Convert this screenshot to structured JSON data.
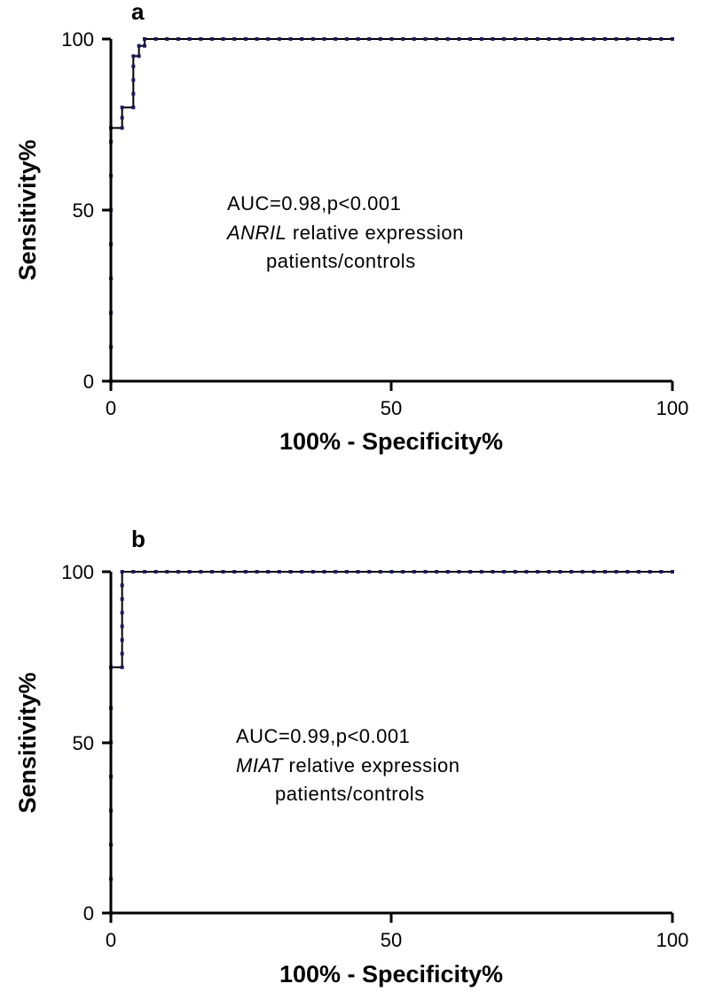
{
  "chart_data": [
    {
      "type": "line",
      "panel_label": "a",
      "xlabel": "100% - Specificity%",
      "ylabel": "Sensitivity%",
      "xlim": [
        0,
        100
      ],
      "ylim": [
        0,
        100
      ],
      "x_ticks": [
        "0",
        "50",
        "100"
      ],
      "y_ticks": [
        "0",
        "50",
        "100"
      ],
      "annotation": {
        "line1": "AUC=0.98,p<0.001",
        "line2_italic": "ANRIL",
        "line2_rest": " relative expression",
        "line3": "patients/controls"
      },
      "series": [
        {
          "step_x": [
            0,
            0,
            2,
            2,
            4,
            4,
            5,
            5,
            6,
            6,
            100
          ],
          "step_y": [
            0,
            74,
            74,
            80,
            80,
            95,
            95,
            98,
            98,
            100,
            100
          ],
          "markers": [
            [
              0,
              0
            ],
            [
              0,
              10
            ],
            [
              0,
              20
            ],
            [
              0,
              30
            ],
            [
              0,
              40
            ],
            [
              0,
              50
            ],
            [
              0,
              60
            ],
            [
              0,
              70
            ],
            [
              0,
              74
            ],
            [
              2,
              74
            ],
            [
              2,
              77
            ],
            [
              2,
              80
            ],
            [
              4,
              80
            ],
            [
              4,
              84
            ],
            [
              4,
              88
            ],
            [
              4,
              92
            ],
            [
              4,
              95
            ],
            [
              5,
              95
            ],
            [
              5,
              98
            ],
            [
              6,
              98
            ],
            [
              6,
              100
            ],
            [
              8,
              100
            ],
            [
              10,
              100
            ],
            [
              12,
              100
            ],
            [
              14,
              100
            ],
            [
              16,
              100
            ],
            [
              18,
              100
            ],
            [
              20,
              100
            ],
            [
              22,
              100
            ],
            [
              24,
              100
            ],
            [
              26,
              100
            ],
            [
              28,
              100
            ],
            [
              30,
              100
            ],
            [
              32,
              100
            ],
            [
              34,
              100
            ],
            [
              36,
              100
            ],
            [
              38,
              100
            ],
            [
              40,
              100
            ],
            [
              42,
              100
            ],
            [
              44,
              100
            ],
            [
              46,
              100
            ],
            [
              48,
              100
            ],
            [
              50,
              100
            ],
            [
              52,
              100
            ],
            [
              54,
              100
            ],
            [
              56,
              100
            ],
            [
              58,
              100
            ],
            [
              60,
              100
            ],
            [
              62,
              100
            ],
            [
              64,
              100
            ],
            [
              66,
              100
            ],
            [
              68,
              100
            ],
            [
              70,
              100
            ],
            [
              72,
              100
            ],
            [
              74,
              100
            ],
            [
              76,
              100
            ],
            [
              78,
              100
            ],
            [
              80,
              100
            ],
            [
              82,
              100
            ],
            [
              84,
              100
            ],
            [
              86,
              100
            ],
            [
              88,
              100
            ],
            [
              90,
              100
            ],
            [
              92,
              100
            ],
            [
              94,
              100
            ],
            [
              96,
              100
            ],
            [
              98,
              100
            ],
            [
              100,
              100
            ]
          ]
        }
      ]
    },
    {
      "type": "line",
      "panel_label": "b",
      "xlabel": "100% - Specificity%",
      "ylabel": "Sensitivity%",
      "xlim": [
        0,
        100
      ],
      "ylim": [
        0,
        100
      ],
      "x_ticks": [
        "0",
        "50",
        "100"
      ],
      "y_ticks": [
        "0",
        "50",
        "100"
      ],
      "annotation": {
        "line1": "AUC=0.99,p<0.001",
        "line2_italic": "MIAT",
        "line2_rest": " relative expression",
        "line3": "patients/controls"
      },
      "series": [
        {
          "step_x": [
            0,
            0,
            2,
            2,
            100
          ],
          "step_y": [
            0,
            72,
            72,
            100,
            100
          ],
          "markers": [
            [
              0,
              0
            ],
            [
              0,
              10
            ],
            [
              0,
              20
            ],
            [
              0,
              30
            ],
            [
              0,
              40
            ],
            [
              0,
              50
            ],
            [
              0,
              60
            ],
            [
              0,
              72
            ],
            [
              2,
              72
            ],
            [
              2,
              76
            ],
            [
              2,
              80
            ],
            [
              2,
              84
            ],
            [
              2,
              88
            ],
            [
              2,
              92
            ],
            [
              2,
              96
            ],
            [
              2,
              100
            ],
            [
              4,
              100
            ],
            [
              6,
              100
            ],
            [
              8,
              100
            ],
            [
              10,
              100
            ],
            [
              12,
              100
            ],
            [
              14,
              100
            ],
            [
              16,
              100
            ],
            [
              18,
              100
            ],
            [
              20,
              100
            ],
            [
              22,
              100
            ],
            [
              24,
              100
            ],
            [
              26,
              100
            ],
            [
              28,
              100
            ],
            [
              30,
              100
            ],
            [
              32,
              100
            ],
            [
              34,
              100
            ],
            [
              36,
              100
            ],
            [
              38,
              100
            ],
            [
              40,
              100
            ],
            [
              42,
              100
            ],
            [
              44,
              100
            ],
            [
              46,
              100
            ],
            [
              48,
              100
            ],
            [
              50,
              100
            ],
            [
              52,
              100
            ],
            [
              54,
              100
            ],
            [
              56,
              100
            ],
            [
              58,
              100
            ],
            [
              60,
              100
            ],
            [
              62,
              100
            ],
            [
              64,
              100
            ],
            [
              66,
              100
            ],
            [
              68,
              100
            ],
            [
              70,
              100
            ],
            [
              72,
              100
            ],
            [
              74,
              100
            ],
            [
              76,
              100
            ],
            [
              78,
              100
            ],
            [
              80,
              100
            ],
            [
              82,
              100
            ],
            [
              84,
              100
            ],
            [
              86,
              100
            ],
            [
              88,
              100
            ],
            [
              90,
              100
            ],
            [
              92,
              100
            ],
            [
              94,
              100
            ],
            [
              96,
              100
            ],
            [
              98,
              100
            ],
            [
              100,
              100
            ]
          ]
        }
      ]
    }
  ],
  "colors": {
    "line": "#000000",
    "marker": "#1a1a5e",
    "axis": "#000000"
  }
}
